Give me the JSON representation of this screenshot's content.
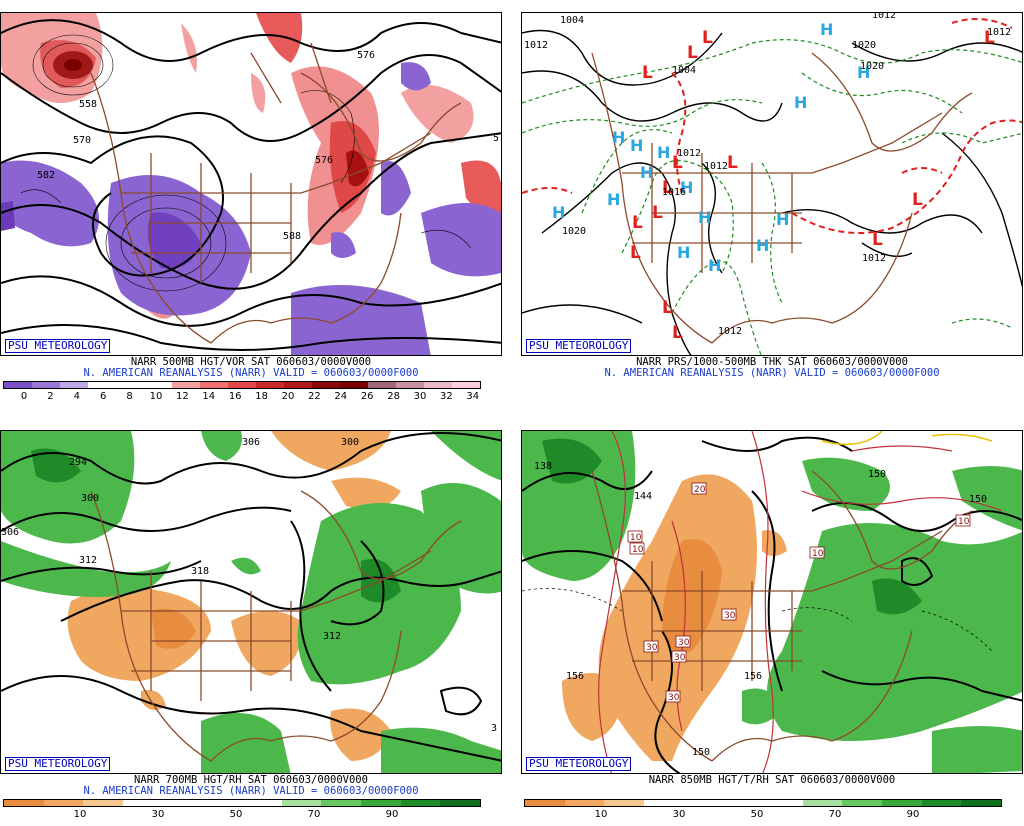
{
  "watermark": "PSU METEOROLOGY",
  "panels": [
    {
      "line1": "NARR 500MB HGT/VOR SAT 060603/0000V000",
      "line2": "N. AMERICAN REANALYSIS (NARR) VALID = 060603/0000F000",
      "colorbar": {
        "colors": [
          "#7a4fc8",
          "#9a78d8",
          "#bfa8e6",
          "#ffffff",
          "#ffffff",
          "#ffffff",
          "#f4a0a0",
          "#ee7070",
          "#e44848",
          "#cc2a2a",
          "#b01818",
          "#8c0808",
          "#7a0000",
          "#a06878",
          "#c890a0",
          "#e8b8c8",
          "#ffd0dc"
        ],
        "labels": [
          "0",
          "2",
          "4",
          "6",
          "8",
          "10",
          "12",
          "14",
          "16",
          "18",
          "20",
          "22",
          "24",
          "26",
          "28",
          "30",
          "32",
          "34"
        ]
      },
      "height_labels": [
        "558",
        "570",
        "582",
        "588",
        "576",
        "5",
        "576"
      ]
    },
    {
      "line1": "NARR PRS/1000-500MB THK SAT 060603/0000V000",
      "line2": "N. AMERICAN REANALYSIS (NARR) VALID = 060603/0000F000",
      "isobar_labels": [
        "1004",
        "1012",
        "1004",
        "1012",
        "1012",
        "1012",
        "1020",
        "1012",
        "1012",
        "1020",
        "1020",
        "1012",
        "1016"
      ],
      "high_symbol": "H",
      "low_symbol": "L"
    },
    {
      "line1": "NARR 700MB HGT/RH SAT 060603/0000V000",
      "line2": "N. AMERICAN REANALYSIS (NARR) VALID = 060603/0000F000",
      "colorbar": {
        "colors": [
          "#e88c40",
          "#f0a860",
          "#f6c890",
          "#ffffff",
          "#ffffff",
          "#ffffff",
          "#ffffff",
          "#a8e0a0",
          "#68c860",
          "#38a838",
          "#1e8a28",
          "#107020"
        ],
        "labels": [
          "10",
          "30",
          "50",
          "70",
          "90"
        ]
      },
      "height_labels": [
        "294",
        "306",
        "300",
        "306",
        "312",
        "318",
        "312",
        "300",
        "3"
      ]
    },
    {
      "line1": "NARR 850MB HGT/T/RH SAT 060603/0000V000",
      "line2": "",
      "colorbar": {
        "colors": [
          "#e88c40",
          "#f0a860",
          "#f6c890",
          "#ffffff",
          "#ffffff",
          "#ffffff",
          "#ffffff",
          "#a8e0a0",
          "#68c860",
          "#38a838",
          "#1e8a28",
          "#107020"
        ],
        "labels": [
          "10",
          "30",
          "50",
          "70",
          "90"
        ]
      },
      "height_labels": [
        "138",
        "144",
        "150",
        "150",
        "156",
        "156",
        "150"
      ],
      "temp_labels": [
        "20",
        "10",
        "10",
        "10",
        "30",
        "30",
        "30",
        "30",
        "30",
        "10"
      ]
    }
  ]
}
